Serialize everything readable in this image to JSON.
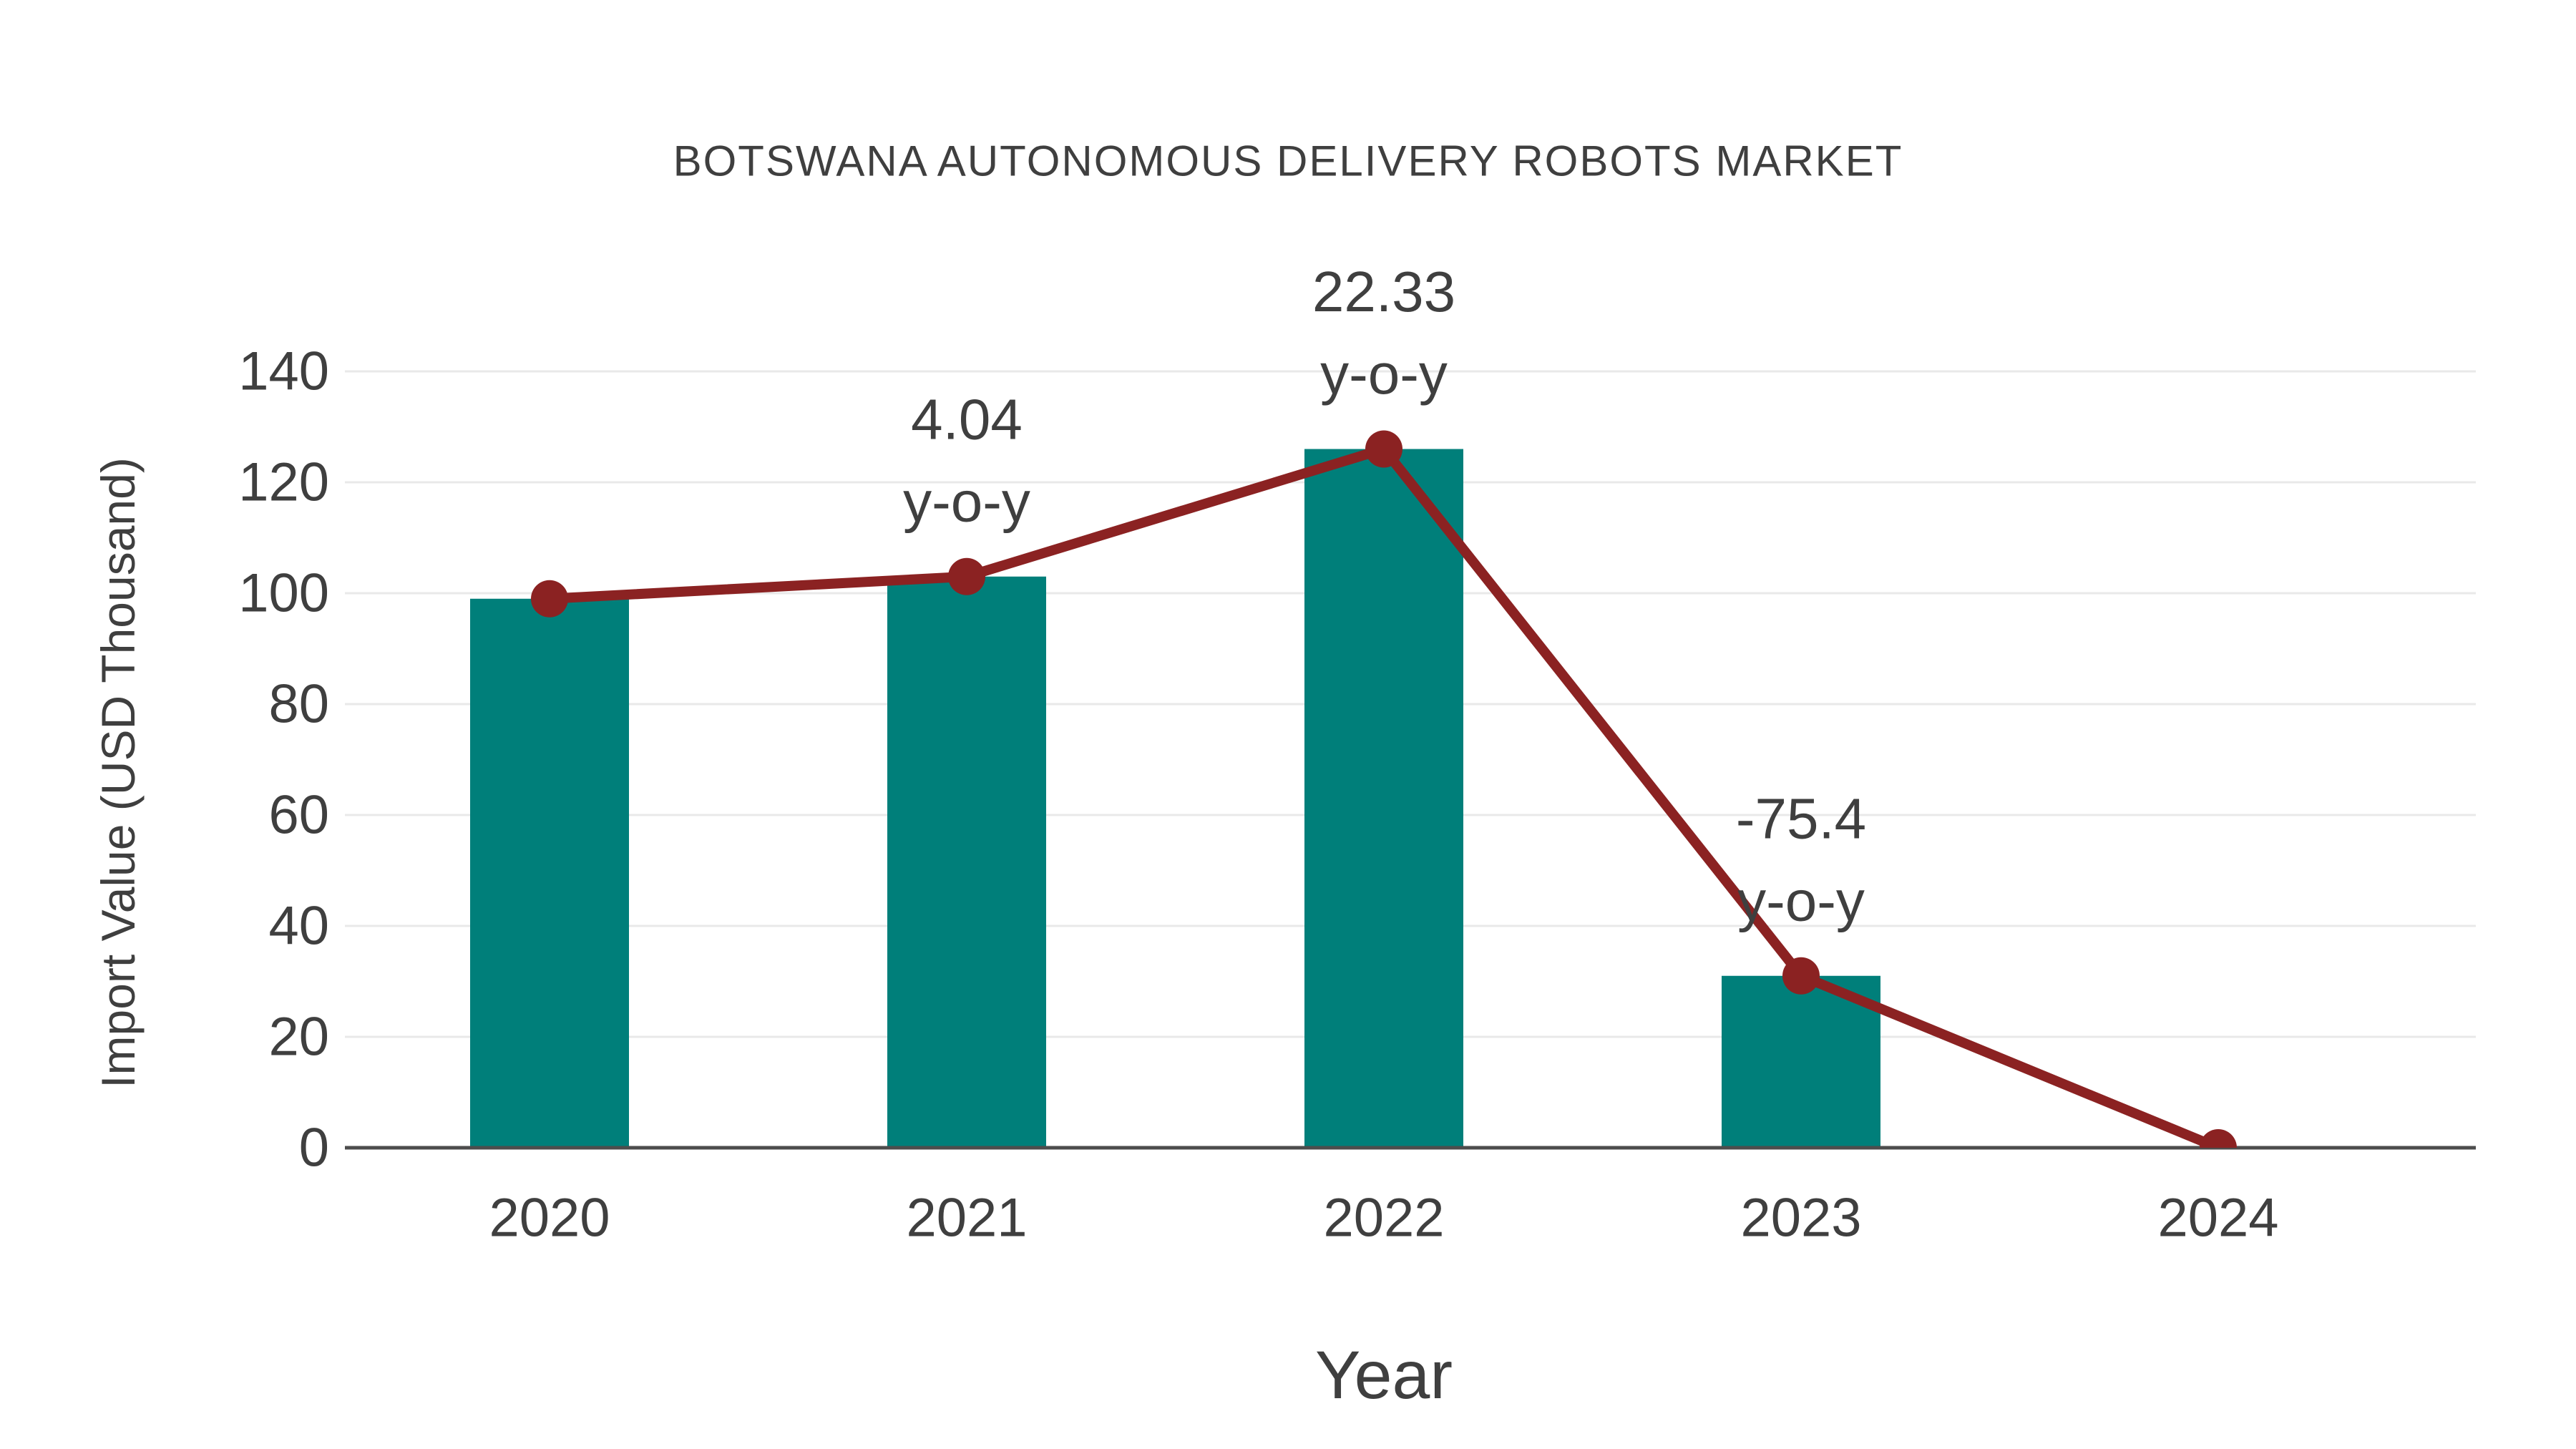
{
  "chart": {
    "title": "BOTSWANA AUTONOMOUS DELIVERY ROBOTS MARKET",
    "xlabel": "Year",
    "ylabel": "Import Value (USD Thousand)"
  },
  "chart_data": {
    "type": "bar",
    "title": "BOTSWANA AUTONOMOUS DELIVERY ROBOTS MARKET",
    "xlabel": "Year",
    "ylabel": "Import Value (USD Thousand)",
    "categories": [
      "2020",
      "2021",
      "2022",
      "2023",
      "2024"
    ],
    "series": [
      {
        "name": "Import Value bars",
        "type": "bar",
        "color": "#007F7A",
        "values": [
          99,
          103,
          126,
          31,
          0
        ]
      },
      {
        "name": "Import Value trend line",
        "type": "line",
        "color": "#8B2222",
        "values": [
          99,
          103,
          126,
          31,
          0
        ]
      }
    ],
    "annotations": [
      {
        "category": "2021",
        "lines": [
          "4.04",
          "y-o-y"
        ]
      },
      {
        "category": "2022",
        "lines": [
          "22.33",
          "y-o-y"
        ]
      },
      {
        "category": "2023",
        "lines": [
          "-75.4",
          "y-o-y"
        ]
      }
    ],
    "ylim": [
      0,
      140
    ],
    "yticks": [
      0,
      20,
      40,
      60,
      80,
      100,
      120,
      140
    ],
    "grid": true,
    "legend": false,
    "colors": {
      "bar": "#007F7A",
      "line": "#8B2222",
      "text": "#3F3F3F",
      "gridline": "#E9E9E9",
      "axis": "#4D4D4D",
      "background": "#FFFFFF"
    }
  }
}
